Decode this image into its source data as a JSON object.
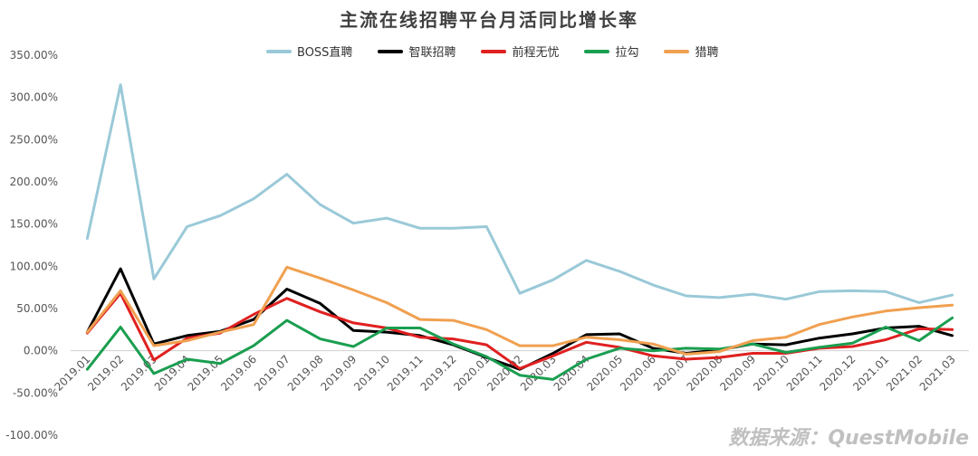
{
  "chart_data": {
    "type": "line",
    "title": "主流在线招聘平台月活同比增长率",
    "xlabel": "",
    "ylabel": "",
    "ylim": [
      -100,
      350
    ],
    "y_ticks": [
      "350.00%",
      "300.00%",
      "250.00%",
      "200.00%",
      "150.00%",
      "100.00%",
      "50.00%",
      "0.00%",
      "-50.00%",
      "-100.00%"
    ],
    "y_tick_values": [
      350,
      300,
      250,
      200,
      150,
      100,
      50,
      0,
      -50,
      -100
    ],
    "categories": [
      "2019.01",
      "2019.02",
      "2019.03",
      "2019.04",
      "2019.05",
      "2019.06",
      "2019.07",
      "2019.08",
      "2019.09",
      "2019.10",
      "2019.11",
      "2019.12",
      "2020.01",
      "2020.02",
      "2020.03",
      "2020.04",
      "2020.05",
      "2020.06",
      "2020.07",
      "2020.08",
      "2020.09",
      "2020.10",
      "2020.11",
      "2020.12",
      "2021.01",
      "2021.02",
      "2021.03"
    ],
    "grid": false,
    "legend_position": "top",
    "series": [
      {
        "name": "BOSS直聘",
        "color": "#9ac9d8",
        "values": [
          133,
          315,
          85,
          147,
          160,
          180,
          209,
          173,
          151,
          157,
          145,
          145,
          147,
          68,
          84,
          107,
          94,
          78,
          65,
          63,
          67,
          61,
          70,
          71,
          70,
          57,
          66
        ]
      },
      {
        "name": "智联招聘",
        "color": "#000000",
        "values": [
          22,
          97,
          8,
          18,
          23,
          37,
          73,
          56,
          24,
          22,
          18,
          7,
          -8,
          -22,
          -3,
          19,
          20,
          3,
          -3,
          1,
          8,
          7,
          15,
          20,
          27,
          29,
          18
        ]
      },
      {
        "name": "前程无忧",
        "color": "#e02020",
        "values": [
          21,
          68,
          -11,
          15,
          21,
          43,
          62,
          46,
          33,
          27,
          16,
          14,
          7,
          -21,
          -6,
          10,
          4,
          -6,
          -10,
          -8,
          -3,
          -3,
          3,
          5,
          13,
          26,
          25
        ]
      },
      {
        "name": "拉勾",
        "color": "#1a9e50",
        "values": [
          -22,
          28,
          -27,
          -10,
          -15,
          6,
          36,
          14,
          5,
          27,
          27,
          8,
          -7,
          -29,
          -34,
          -10,
          3,
          0,
          3,
          2,
          8,
          -2,
          4,
          9,
          28,
          12,
          39
        ]
      },
      {
        "name": "猎聘",
        "color": "#f0a050",
        "values": [
          22,
          71,
          6,
          12,
          22,
          31,
          99,
          86,
          72,
          57,
          37,
          36,
          25,
          6,
          6,
          16,
          13,
          8,
          -4,
          -1,
          12,
          16,
          31,
          40,
          47,
          51,
          54
        ]
      }
    ]
  },
  "watermark": "数据来源：QuestMobile"
}
